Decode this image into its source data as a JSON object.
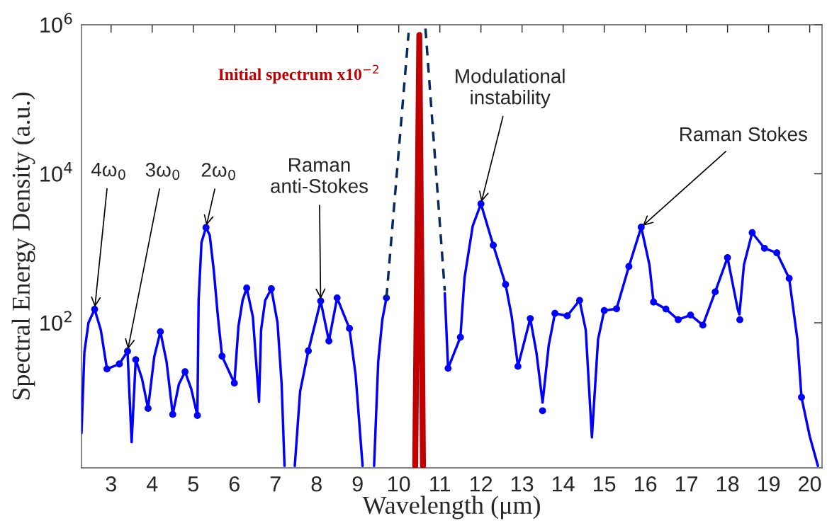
{
  "chart_data": {
    "type": "line",
    "xlabel": "Wavelength (μm)",
    "ylabel": "Spectral Energy Density (a.u.)",
    "log": "y",
    "xlim": [
      2.28,
      20.3
    ],
    "ylim": [
      1.13,
      1000000
    ],
    "xticks": [
      3,
      4,
      5,
      6,
      7,
      8,
      9,
      10,
      11,
      12,
      13,
      14,
      15,
      16,
      17,
      18,
      19,
      20
    ],
    "yticks": [
      {
        "value": 100,
        "label": "10$^{2}$"
      },
      {
        "value": 10000,
        "label": "10$^{4}$"
      },
      {
        "value": 1000000,
        "label": "10$^{6}$"
      }
    ],
    "grid": false,
    "legend": false,
    "annotations": [
      {
        "text": "4ω$_{0}$",
        "x": 2.6,
        "y": 152
      },
      {
        "text": "3ω$_{0}$",
        "x": 3.4,
        "y": 41.5
      },
      {
        "text": "2ω$_{0}$",
        "x": 5.31,
        "y": 1900
      },
      {
        "text": "Raman\nanti-Stokes",
        "x": 8.1,
        "y": 196
      },
      {
        "text": "Modulational\ninstability",
        "x": 12.0,
        "y": 3950
      },
      {
        "text": "Raman Stokes",
        "x": 15.9,
        "y": 1920
      }
    ],
    "series": [
      {
        "color": "#0000ff",
        "marker": "none",
        "line_style": "solid",
        "x": [
          2.28,
          2.35,
          2.45,
          2.6,
          2.75,
          2.9,
          3.2,
          3.4,
          3.5,
          3.6,
          3.75,
          3.9,
          4.05,
          4.2,
          4.35,
          4.5,
          4.65,
          4.8,
          4.95,
          5.1,
          5.13,
          5.2,
          5.31,
          5.4,
          5.5,
          5.6,
          5.7,
          6.0,
          6.1,
          6.2,
          6.3,
          6.45,
          6.6,
          6.65,
          6.75,
          6.9,
          7.05,
          7.15,
          7.22,
          7.3,
          7.47,
          7.6,
          7.8,
          8.1,
          8.3,
          8.5,
          8.8,
          8.95,
          9.12,
          9.25,
          9.4,
          9.5,
          9.6,
          9.7,
          10.5,
          11.12,
          11.2,
          11.5,
          11.6,
          11.8,
          12.0,
          12.3,
          12.6,
          12.75,
          12.9,
          13.2,
          13.35,
          13.5,
          13.65,
          13.8,
          14.1,
          14.4,
          14.55,
          14.7,
          14.85,
          15.0,
          15.3,
          15.6,
          15.9,
          16.1,
          16.2,
          16.5,
          16.8,
          17.1,
          17.4,
          17.7,
          18.0,
          18.25,
          18.29,
          18.4,
          18.6,
          18.9,
          19.2,
          19.5,
          19.7,
          19.8,
          20.0,
          20.2
        ],
        "values": [
          3.3,
          40,
          100,
          152,
          80,
          24,
          28,
          41.5,
          2.5,
          32,
          18,
          7.1,
          35,
          76,
          30,
          5.9,
          15,
          22,
          13,
          5.7,
          200,
          1200,
          1900,
          1500,
          500,
          120,
          35.6,
          15.5,
          90,
          200,
          293,
          120,
          8.7,
          80,
          200,
          286,
          100,
          15,
          1.2,
          null,
          1.2,
          12,
          42,
          196,
          57,
          216,
          84,
          20,
          1.2,
          null,
          1.2,
          30,
          110,
          216,
          null,
          250,
          24.5,
          64,
          400,
          2000,
          3950,
          1100,
          326,
          120,
          26,
          114,
          40,
          8.5,
          50,
          134,
          124,
          200,
          80,
          2.9,
          60,
          146,
          154,
          570,
          1920,
          600,
          190,
          153,
          110,
          127,
          93,
          260,
          750,
          150,
          130,
          600,
          1620,
          1000,
          870,
          395,
          60,
          10,
          3,
          1.2
        ]
      },
      {
        "type": "scatter",
        "color": "#0000ff",
        "marker": "circle",
        "x": [
          2.6,
          2.9,
          3.2,
          3.4,
          3.6,
          3.9,
          4.2,
          4.5,
          4.8,
          5.1,
          5.31,
          5.7,
          6.0,
          6.3,
          6.9,
          7.8,
          8.1,
          8.3,
          8.5,
          8.8,
          9.7,
          11.2,
          11.5,
          12.0,
          12.3,
          12.6,
          12.9,
          13.2,
          13.5,
          13.8,
          14.1,
          14.4,
          15.0,
          15.3,
          15.6,
          15.9,
          16.2,
          16.5,
          16.8,
          17.1,
          17.4,
          17.7,
          18.0,
          18.3,
          18.6,
          18.9,
          19.2,
          19.5,
          19.8
        ],
        "values": [
          152,
          24,
          28,
          41.5,
          32,
          7.1,
          76,
          5.9,
          22,
          5.7,
          1900,
          35.6,
          15.5,
          293,
          286,
          42,
          196,
          57,
          216,
          84,
          216,
          24.5,
          64,
          3950,
          1100,
          326,
          26,
          114,
          6.6,
          134,
          124,
          200,
          146,
          154,
          570,
          1920,
          190,
          153,
          110,
          127,
          93,
          260,
          750,
          110,
          1620,
          1000,
          870,
          395,
          10
        ]
      },
      {
        "color": "#0a2a5e",
        "marker": "none",
        "line_style": "dashed",
        "x": [
          9.7,
          10.24,
          10.45,
          10.65,
          11.12
        ],
        "values": [
          216,
          780000,
          null,
          890000,
          270
        ]
      },
      {
        "name": "Initial spectrum x10$^{−2}$",
        "color": "#c00000",
        "marker": "none",
        "line_style": "solid",
        "x": [
          10.4,
          10.5,
          10.59
        ],
        "values": [
          1.2,
          730000,
          1.2
        ]
      }
    ]
  }
}
